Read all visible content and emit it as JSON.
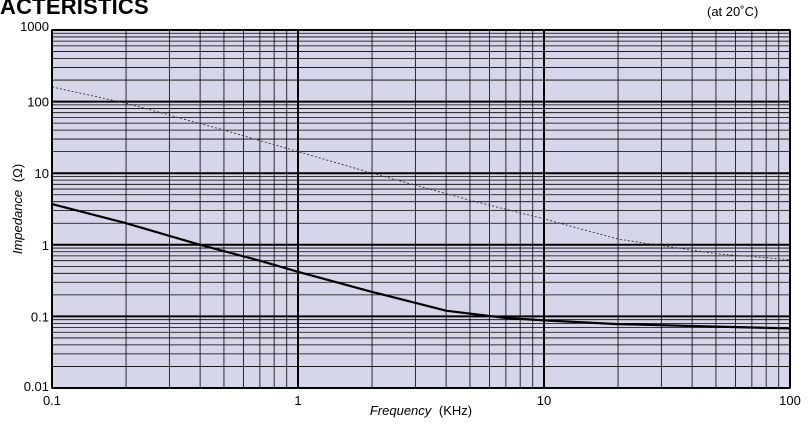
{
  "header": {
    "title_fragment": "ACTERISTICS",
    "condition_note": "(at 20˚C)"
  },
  "chart_data": {
    "type": "line",
    "x_scale": "log",
    "y_scale": "log",
    "xlim": [
      0.1,
      100
    ],
    "ylim": [
      0.01,
      1000
    ],
    "xlabel_italic": "Frequency",
    "xlabel_unit": "(KHz)",
    "ylabel_italic": "Impedance",
    "ylabel_unit": "(Ω)",
    "x_ticks": [
      {
        "value": 0.1,
        "label": "0.1"
      },
      {
        "value": 1,
        "label": "1"
      },
      {
        "value": 10,
        "label": "10"
      },
      {
        "value": 100,
        "label": "100"
      }
    ],
    "y_ticks": [
      {
        "value": 1000,
        "label": "1000"
      },
      {
        "value": 100,
        "label": "100"
      },
      {
        "value": 10,
        "label": "10"
      },
      {
        "value": 1,
        "label": "1"
      },
      {
        "value": 0.1,
        "label": "0.1"
      },
      {
        "value": 0.01,
        "label": "0.01"
      }
    ],
    "grid": true,
    "background_color": "#d6d6ea",
    "series": [
      {
        "style": "solid",
        "color": "#000000",
        "points": [
          {
            "x": 0.1,
            "y": 3.7
          },
          {
            "x": 0.2,
            "y": 2.0
          },
          {
            "x": 0.4,
            "y": 1.0
          },
          {
            "x": 0.7,
            "y": 0.6
          },
          {
            "x": 1,
            "y": 0.42
          },
          {
            "x": 2,
            "y": 0.22
          },
          {
            "x": 4,
            "y": 0.12
          },
          {
            "x": 7,
            "y": 0.095
          },
          {
            "x": 10,
            "y": 0.088
          },
          {
            "x": 20,
            "y": 0.078
          },
          {
            "x": 50,
            "y": 0.072
          },
          {
            "x": 100,
            "y": 0.068
          }
        ]
      },
      {
        "style": "dotted",
        "color": "#333333",
        "points": [
          {
            "x": 0.1,
            "y": 160
          },
          {
            "x": 0.2,
            "y": 95
          },
          {
            "x": 0.5,
            "y": 40
          },
          {
            "x": 1,
            "y": 20
          },
          {
            "x": 2,
            "y": 10
          },
          {
            "x": 5,
            "y": 4.2
          },
          {
            "x": 10,
            "y": 2.3
          },
          {
            "x": 20,
            "y": 1.2
          },
          {
            "x": 50,
            "y": 0.75
          },
          {
            "x": 100,
            "y": 0.62
          }
        ]
      }
    ]
  }
}
